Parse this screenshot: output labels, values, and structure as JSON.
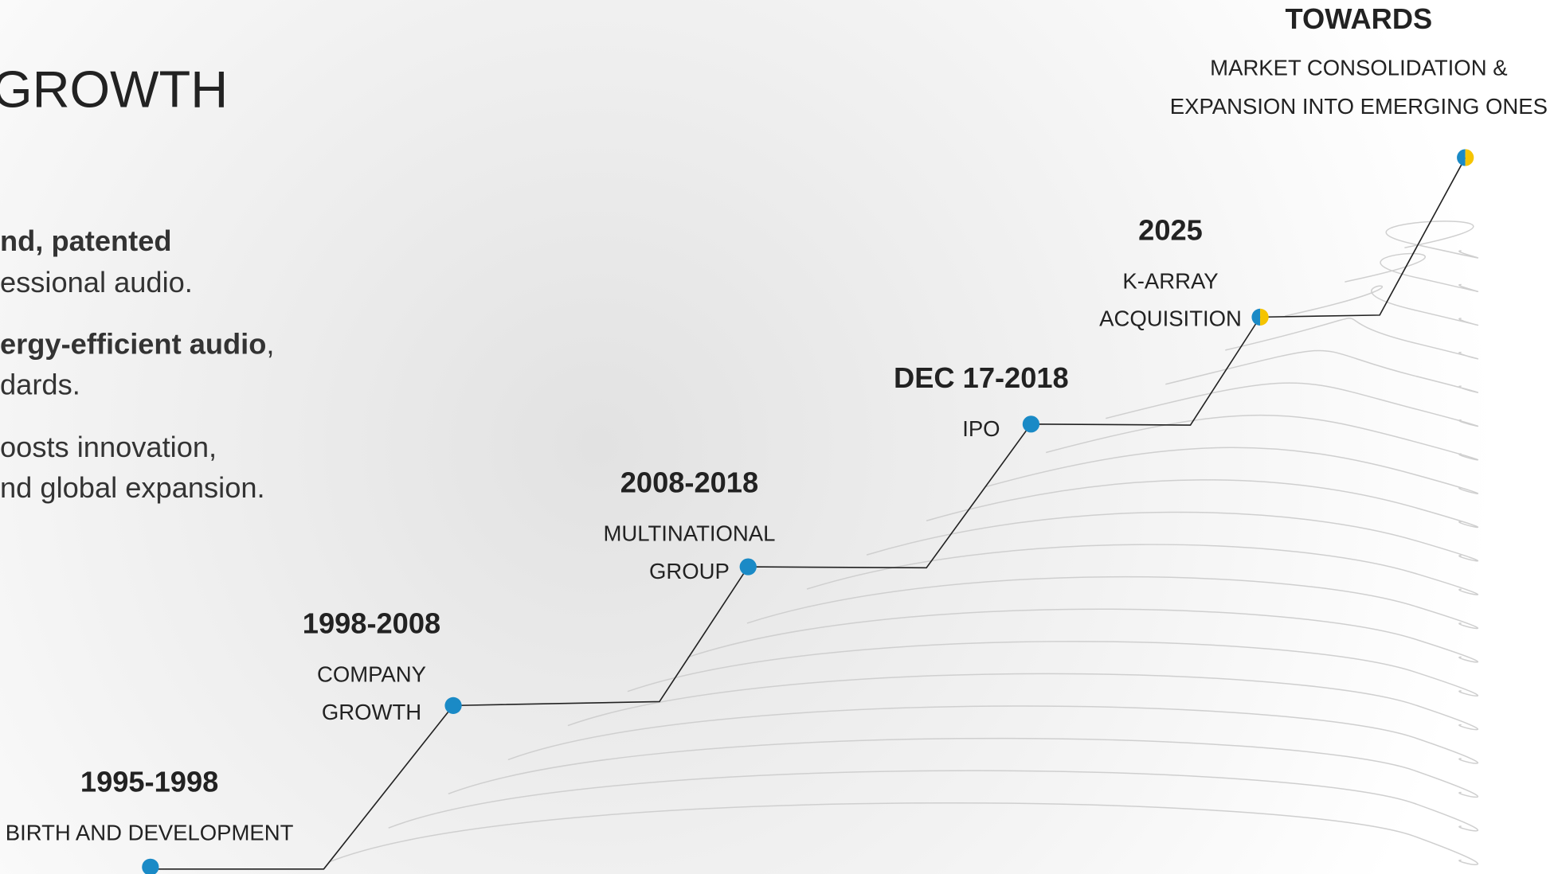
{
  "title": "GROWTH",
  "paragraphs": [
    {
      "lines": [
        [
          {
            "text": "nd, patented",
            "bold": true
          }
        ],
        [
          {
            "text": "essional audio.",
            "bold": false
          }
        ]
      ]
    },
    {
      "lines": [
        [
          {
            "text": "ergy-efficient audio",
            "bold": true
          },
          {
            "text": ",",
            "bold": false
          }
        ],
        [
          {
            "text": "dards.",
            "bold": false
          }
        ]
      ]
    },
    {
      "lines": [
        [
          {
            "text": "oosts innovation,",
            "bold": false
          }
        ],
        [
          {
            "text": "nd global expansion.",
            "bold": false
          }
        ]
      ]
    }
  ],
  "milestones": [
    {
      "date": "1995-1998",
      "label": [
        "BIRTH AND DEVELOPMENT"
      ],
      "dot_colors": [
        "#1a8ac6"
      ]
    },
    {
      "date": "1998-2008",
      "label": [
        "COMPANY",
        "GROWTH"
      ],
      "dot_colors": [
        "#1a8ac6"
      ]
    },
    {
      "date": "2008-2018",
      "label": [
        "MULTINATIONAL",
        "GROUP"
      ],
      "dot_colors": [
        "#1a8ac6"
      ]
    },
    {
      "date": "DEC 17-2018",
      "label": [
        "IPO"
      ],
      "dot_colors": [
        "#1a8ac6"
      ]
    },
    {
      "date": "2025",
      "label": [
        "K-ARRAY",
        "ACQUISITION"
      ],
      "dot_colors": [
        "#1a8ac6",
        "#f5c400"
      ]
    },
    {
      "date": "TOWARDS",
      "label": [
        "MARKET CONSOLIDATION &",
        "EXPANSION INTO EMERGING ONES"
      ],
      "dot_colors": [
        "#1a8ac6",
        "#f5c400"
      ]
    }
  ]
}
